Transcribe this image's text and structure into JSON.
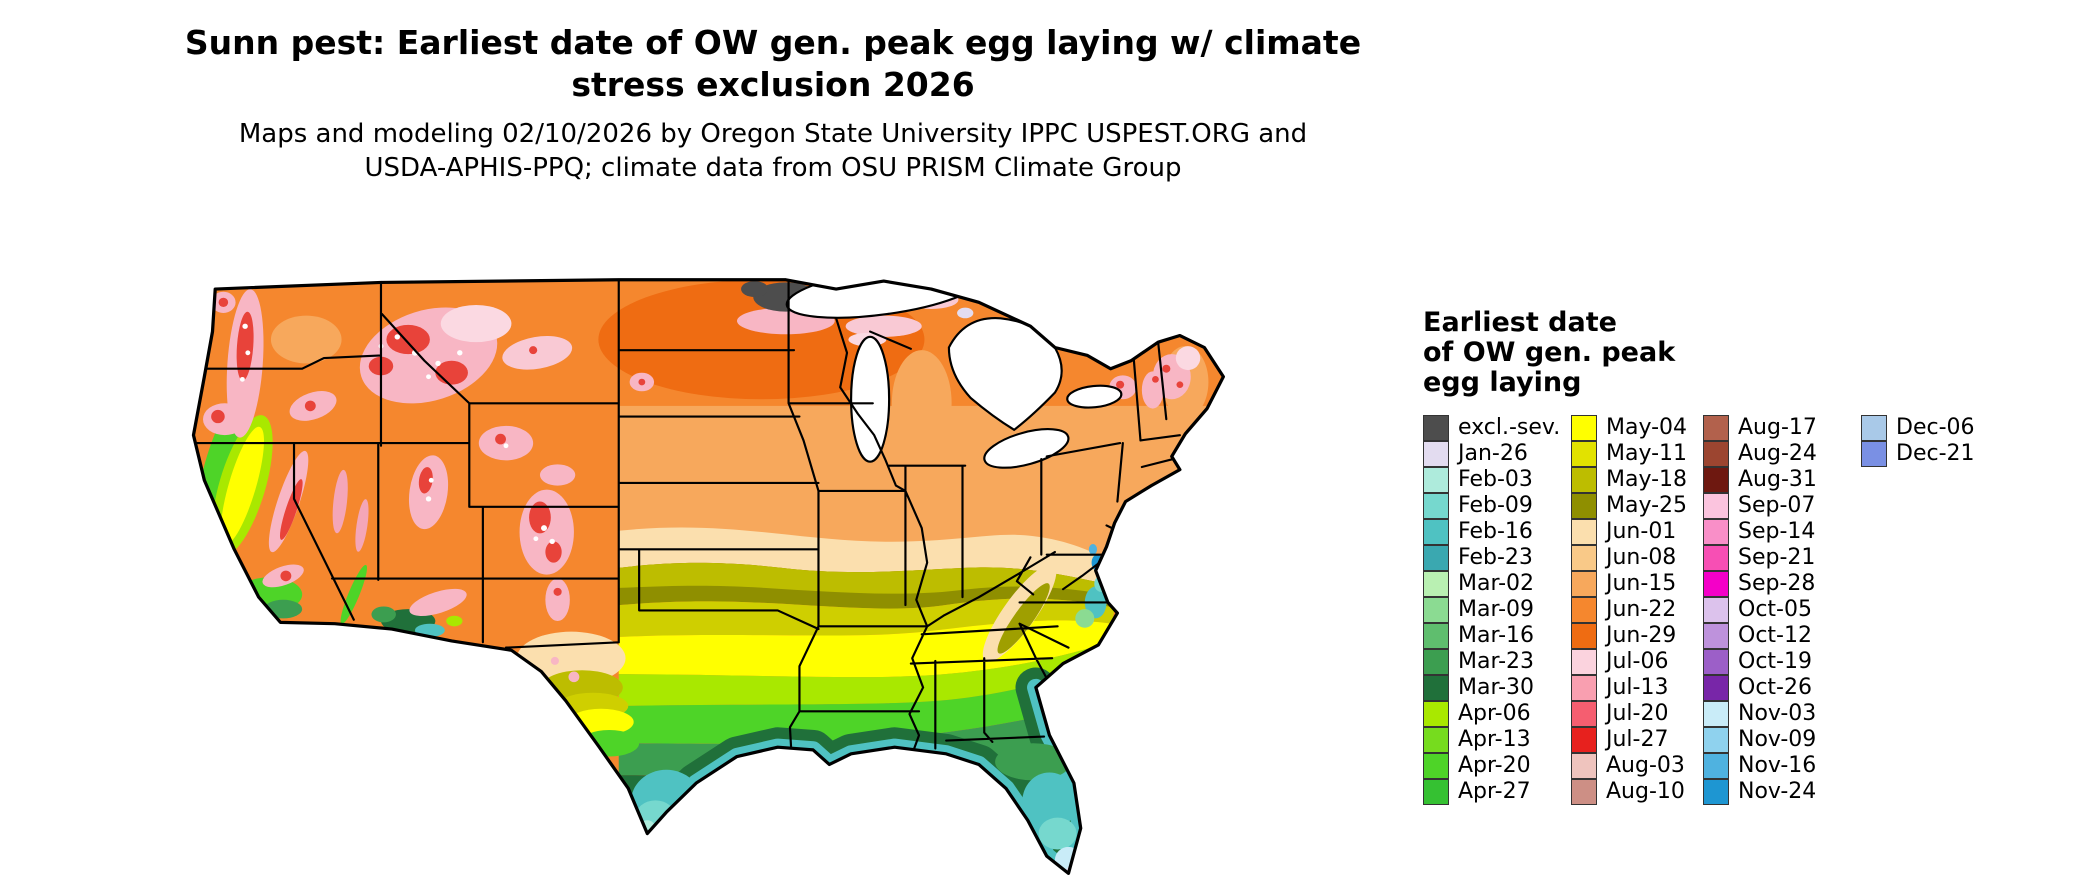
{
  "title": {
    "line1": "Sunn pest: Earliest date of OW gen. peak egg laying w/ climate",
    "line2": "stress exclusion 2026"
  },
  "subtitle": {
    "line1": "Maps and modeling 02/10/2026 by Oregon State University IPPC USPEST.ORG and",
    "line2": "USDA-APHIS-PPQ; climate data from OSU PRISM Climate Group"
  },
  "legend": {
    "title_lines": [
      "Earliest date",
      "of OW gen. peak",
      "egg laying"
    ],
    "columns": [
      {
        "entries": [
          {
            "label": "excl.-sev.",
            "color": "#4D4D4D"
          },
          {
            "label": "Jan-26",
            "color": "#E3DCF0"
          },
          {
            "label": "Feb-03",
            "color": "#AEEBDC"
          },
          {
            "label": "Feb-09",
            "color": "#76D8CE"
          },
          {
            "label": "Feb-16",
            "color": "#4FC2C2"
          },
          {
            "label": "Feb-23",
            "color": "#3AA8B0"
          },
          {
            "label": "Mar-02",
            "color": "#B9F0B2"
          },
          {
            "label": "Mar-09",
            "color": "#8BDB92"
          },
          {
            "label": "Mar-16",
            "color": "#5FBE6E"
          },
          {
            "label": "Mar-23",
            "color": "#3C9E50"
          },
          {
            "label": "Mar-30",
            "color": "#20703A"
          },
          {
            "label": "Apr-06",
            "color": "#A9E800"
          },
          {
            "label": "Apr-13",
            "color": "#76DC1E"
          },
          {
            "label": "Apr-20",
            "color": "#4ED428"
          },
          {
            "label": "Apr-27",
            "color": "#35C132"
          }
        ]
      },
      {
        "entries": [
          {
            "label": "May-04",
            "color": "#FFFF00"
          },
          {
            "label": "May-11",
            "color": "#E2E200"
          },
          {
            "label": "May-18",
            "color": "#BDBD00"
          },
          {
            "label": "May-25",
            "color": "#8F8F00"
          },
          {
            "label": "Jun-01",
            "color": "#FBDFAE"
          },
          {
            "label": "Jun-08",
            "color": "#F9C988"
          },
          {
            "label": "Jun-15",
            "color": "#F7A85C"
          },
          {
            "label": "Jun-22",
            "color": "#F5872E"
          },
          {
            "label": "Jun-29",
            "color": "#EF6C12"
          },
          {
            "label": "Jul-06",
            "color": "#FBD3DE"
          },
          {
            "label": "Jul-13",
            "color": "#F99FB0"
          },
          {
            "label": "Jul-20",
            "color": "#F55E70"
          },
          {
            "label": "Jul-27",
            "color": "#E7211E"
          },
          {
            "label": "Aug-03",
            "color": "#EFC4BE"
          },
          {
            "label": "Aug-10",
            "color": "#CD8F85"
          }
        ]
      },
      {
        "entries": [
          {
            "label": "Aug-17",
            "color": "#B2614C"
          },
          {
            "label": "Aug-24",
            "color": "#9C4530"
          },
          {
            "label": "Aug-31",
            "color": "#6E1810"
          },
          {
            "label": "Sep-07",
            "color": "#FBC4DE"
          },
          {
            "label": "Sep-14",
            "color": "#F98FC8"
          },
          {
            "label": "Sep-21",
            "color": "#F74FB4"
          },
          {
            "label": "Sep-28",
            "color": "#F400C8"
          },
          {
            "label": "Oct-05",
            "color": "#DCC2EC"
          },
          {
            "label": "Oct-12",
            "color": "#BE92DC"
          },
          {
            "label": "Oct-19",
            "color": "#9C5FC8"
          },
          {
            "label": "Oct-26",
            "color": "#7826A8"
          },
          {
            "label": "Nov-03",
            "color": "#C9ECF8"
          },
          {
            "label": "Nov-09",
            "color": "#8FD2EE"
          },
          {
            "label": "Nov-16",
            "color": "#4FB2E0"
          },
          {
            "label": "Nov-24",
            "color": "#1E96D2"
          }
        ]
      },
      {
        "entries": [
          {
            "label": "Dec-06",
            "color": "#A9C9E8"
          },
          {
            "label": "Dec-21",
            "color": "#7A90E4"
          }
        ]
      }
    ]
  }
}
